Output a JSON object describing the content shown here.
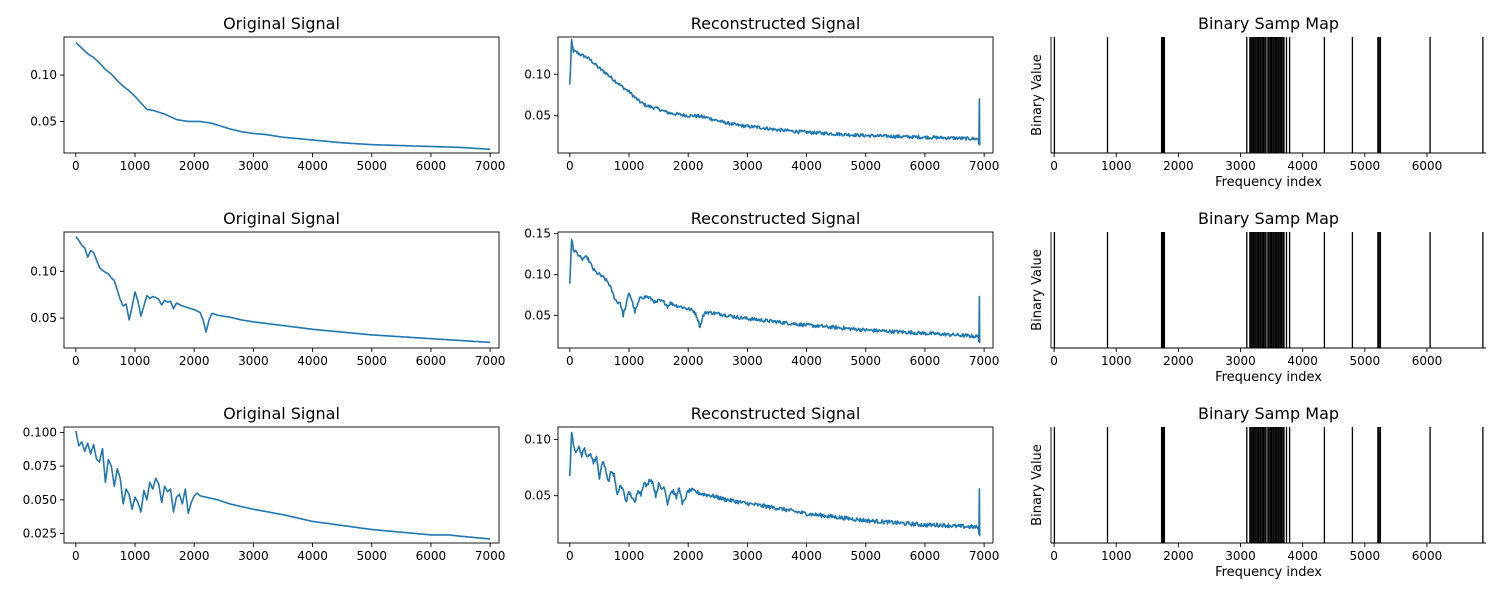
{
  "chart_data": [
    {
      "type": "line",
      "title": "Original Signal",
      "xlim": [
        -200,
        7150
      ],
      "ylim": [
        0.016,
        0.141
      ],
      "xticks": [
        0,
        1000,
        2000,
        3000,
        4000,
        5000,
        6000,
        7000
      ],
      "yticks": [
        0.05,
        0.1
      ],
      "ytick_labels": [
        "0.05",
        "0.10"
      ],
      "color": "#1f77b4",
      "grid": false,
      "x": [
        0,
        100,
        200,
        300,
        400,
        500,
        600,
        700,
        800,
        900,
        1000,
        1100,
        1200,
        1300,
        1400,
        1500,
        1600,
        1700,
        1800,
        1900,
        2000,
        2100,
        2200,
        2300,
        2400,
        2500,
        2600,
        2800,
        3000,
        3200,
        3500,
        4000,
        4500,
        5000,
        5500,
        6000,
        6500,
        7000
      ],
      "y": [
        0.135,
        0.129,
        0.123,
        0.119,
        0.113,
        0.106,
        0.101,
        0.094,
        0.088,
        0.083,
        0.077,
        0.07,
        0.063,
        0.062,
        0.06,
        0.058,
        0.055,
        0.052,
        0.051,
        0.05,
        0.05,
        0.05,
        0.049,
        0.048,
        0.046,
        0.044,
        0.042,
        0.039,
        0.037,
        0.036,
        0.033,
        0.03,
        0.027,
        0.025,
        0.024,
        0.023,
        0.022,
        0.02
      ]
    },
    {
      "type": "line",
      "title": "Reconstructed Signal",
      "xlim": [
        -200,
        7150
      ],
      "ylim": [
        0.005,
        0.145
      ],
      "xticks": [
        0,
        1000,
        2000,
        3000,
        4000,
        5000,
        6000,
        7000
      ],
      "yticks": [
        0.05,
        0.1
      ],
      "ytick_labels": [
        "0.05",
        "0.10"
      ],
      "color": "#1f77b4",
      "grid": false,
      "noise": 0.002,
      "end_spike": 0.07,
      "x": [
        0,
        30,
        60,
        100,
        200,
        300,
        400,
        500,
        600,
        700,
        800,
        900,
        1000,
        1100,
        1200,
        1300,
        1400,
        1500,
        1600,
        1700,
        1800,
        1900,
        2000,
        2100,
        2200,
        2300,
        2400,
        2500,
        2600,
        2800,
        3000,
        3200,
        3500,
        4000,
        4500,
        5000,
        5500,
        6000,
        6500,
        6900
      ],
      "y": [
        0.087,
        0.14,
        0.128,
        0.127,
        0.123,
        0.12,
        0.114,
        0.107,
        0.102,
        0.096,
        0.09,
        0.084,
        0.079,
        0.072,
        0.066,
        0.062,
        0.06,
        0.058,
        0.055,
        0.053,
        0.052,
        0.051,
        0.05,
        0.05,
        0.049,
        0.048,
        0.046,
        0.044,
        0.042,
        0.039,
        0.037,
        0.036,
        0.033,
        0.03,
        0.028,
        0.026,
        0.025,
        0.024,
        0.023,
        0.022
      ]
    },
    {
      "type": "bar",
      "title": "Binary Samp Map",
      "xlabel": "Frequency index",
      "ylabel": "Binary Value",
      "xlim": [
        -50,
        6950
      ],
      "xticks": [
        0,
        1000,
        2000,
        3000,
        4000,
        5000,
        6000
      ],
      "color": "#000000",
      "lines": [
        5,
        860,
        1730,
        1745,
        1760,
        1775,
        3100,
        3150,
        3170,
        3190,
        3210,
        3230,
        3250,
        3270,
        3290,
        3310,
        3330,
        3350,
        3370,
        3390,
        3410,
        3440,
        3460,
        3480,
        3500,
        3520,
        3540,
        3560,
        3580,
        3600,
        3620,
        3640,
        3660,
        3680,
        3700,
        3740,
        3790,
        4350,
        4800,
        5210,
        5230,
        5250,
        6050,
        6900
      ]
    },
    {
      "type": "line",
      "title": "Original Signal",
      "xlim": [
        -200,
        7150
      ],
      "ylim": [
        0.018,
        0.142
      ],
      "xticks": [
        0,
        1000,
        2000,
        3000,
        4000,
        5000,
        6000,
        7000
      ],
      "yticks": [
        0.05,
        0.1
      ],
      "ytick_labels": [
        "0.05",
        "0.10"
      ],
      "color": "#1f77b4",
      "grid": false,
      "x": [
        0,
        50,
        100,
        150,
        200,
        250,
        300,
        350,
        400,
        450,
        500,
        550,
        600,
        650,
        700,
        750,
        800,
        850,
        900,
        950,
        1000,
        1050,
        1100,
        1150,
        1200,
        1250,
        1300,
        1350,
        1400,
        1450,
        1500,
        1550,
        1600,
        1650,
        1700,
        1800,
        1900,
        2000,
        2100,
        2150,
        2200,
        2250,
        2300,
        2400,
        2600,
        2800,
        3000,
        3500,
        4000,
        4500,
        5000,
        5500,
        6000,
        6500,
        7000
      ],
      "y": [
        0.137,
        0.133,
        0.128,
        0.125,
        0.115,
        0.122,
        0.12,
        0.112,
        0.104,
        0.101,
        0.099,
        0.097,
        0.093,
        0.09,
        0.08,
        0.07,
        0.063,
        0.065,
        0.048,
        0.062,
        0.078,
        0.068,
        0.052,
        0.063,
        0.074,
        0.071,
        0.073,
        0.072,
        0.07,
        0.064,
        0.069,
        0.067,
        0.068,
        0.06,
        0.066,
        0.063,
        0.061,
        0.059,
        0.056,
        0.048,
        0.035,
        0.048,
        0.055,
        0.053,
        0.051,
        0.048,
        0.046,
        0.042,
        0.038,
        0.035,
        0.032,
        0.03,
        0.028,
        0.026,
        0.024
      ]
    },
    {
      "type": "line",
      "title": "Reconstructed Signal",
      "xlim": [
        -200,
        7150
      ],
      "ylim": [
        0.01,
        0.152
      ],
      "xticks": [
        0,
        1000,
        2000,
        3000,
        4000,
        5000,
        6000,
        7000
      ],
      "yticks": [
        0.05,
        0.1,
        0.15
      ],
      "ytick_labels": [
        "0.05",
        "0.10",
        "0.15"
      ],
      "color": "#1f77b4",
      "grid": false,
      "noise": 0.0022,
      "end_spike": 0.073,
      "x": [
        0,
        30,
        60,
        100,
        150,
        200,
        250,
        300,
        350,
        400,
        450,
        500,
        550,
        600,
        650,
        700,
        750,
        800,
        850,
        900,
        950,
        1000,
        1050,
        1100,
        1150,
        1200,
        1250,
        1300,
        1350,
        1400,
        1450,
        1500,
        1550,
        1600,
        1650,
        1700,
        1800,
        1900,
        2000,
        2100,
        2150,
        2200,
        2250,
        2300,
        2400,
        2600,
        2800,
        3000,
        3500,
        4000,
        4500,
        5000,
        5500,
        6000,
        6500,
        6900
      ],
      "y": [
        0.089,
        0.144,
        0.13,
        0.128,
        0.124,
        0.118,
        0.121,
        0.12,
        0.113,
        0.106,
        0.102,
        0.1,
        0.097,
        0.094,
        0.09,
        0.082,
        0.072,
        0.066,
        0.066,
        0.05,
        0.062,
        0.078,
        0.068,
        0.054,
        0.064,
        0.073,
        0.072,
        0.073,
        0.071,
        0.069,
        0.065,
        0.068,
        0.067,
        0.066,
        0.061,
        0.065,
        0.062,
        0.06,
        0.058,
        0.055,
        0.048,
        0.036,
        0.049,
        0.054,
        0.053,
        0.051,
        0.048,
        0.046,
        0.042,
        0.038,
        0.035,
        0.032,
        0.03,
        0.028,
        0.026,
        0.024
      ]
    },
    {
      "type": "bar",
      "title": "Binary Samp Map",
      "xlabel": "Frequency index",
      "ylabel": "Binary Value",
      "xlim": [
        -50,
        6950
      ],
      "xticks": [
        0,
        1000,
        2000,
        3000,
        4000,
        5000,
        6000
      ],
      "color": "#000000",
      "lines": [
        5,
        860,
        1730,
        1745,
        1760,
        1775,
        3100,
        3150,
        3170,
        3190,
        3210,
        3230,
        3250,
        3270,
        3290,
        3310,
        3330,
        3350,
        3370,
        3390,
        3410,
        3440,
        3460,
        3480,
        3500,
        3520,
        3540,
        3560,
        3580,
        3600,
        3620,
        3640,
        3660,
        3680,
        3700,
        3740,
        3790,
        4350,
        4800,
        5210,
        5230,
        5250,
        6050,
        6900
      ]
    },
    {
      "type": "line",
      "title": "Original Signal",
      "xlim": [
        -200,
        7150
      ],
      "ylim": [
        0.018,
        0.104
      ],
      "xticks": [
        0,
        1000,
        2000,
        3000,
        4000,
        5000,
        6000,
        7000
      ],
      "yticks": [
        0.025,
        0.05,
        0.075,
        0.1
      ],
      "ytick_labels": [
        "0.025",
        "0.050",
        "0.075",
        "0.100"
      ],
      "color": "#1f77b4",
      "grid": false,
      "x": [
        0,
        50,
        100,
        150,
        200,
        250,
        300,
        350,
        400,
        450,
        500,
        550,
        600,
        650,
        700,
        750,
        800,
        850,
        900,
        950,
        1000,
        1050,
        1100,
        1150,
        1200,
        1250,
        1300,
        1350,
        1400,
        1450,
        1500,
        1550,
        1600,
        1650,
        1700,
        1750,
        1800,
        1850,
        1900,
        1950,
        2000,
        2050,
        2100,
        2200,
        2400,
        2600,
        2800,
        3000,
        3500,
        4000,
        4500,
        5000,
        5500,
        6000,
        6300,
        6500,
        7000
      ],
      "y": [
        0.101,
        0.09,
        0.093,
        0.086,
        0.092,
        0.084,
        0.091,
        0.08,
        0.078,
        0.088,
        0.063,
        0.08,
        0.075,
        0.06,
        0.073,
        0.066,
        0.047,
        0.058,
        0.054,
        0.043,
        0.052,
        0.048,
        0.041,
        0.057,
        0.05,
        0.063,
        0.058,
        0.066,
        0.062,
        0.048,
        0.06,
        0.056,
        0.058,
        0.041,
        0.052,
        0.054,
        0.047,
        0.058,
        0.04,
        0.048,
        0.053,
        0.055,
        0.053,
        0.052,
        0.05,
        0.047,
        0.045,
        0.043,
        0.039,
        0.034,
        0.031,
        0.028,
        0.026,
        0.024,
        0.024,
        0.023,
        0.021
      ]
    },
    {
      "type": "line",
      "title": "Reconstructed Signal",
      "xlim": [
        -200,
        7150
      ],
      "ylim": [
        0.008,
        0.111
      ],
      "xticks": [
        0,
        1000,
        2000,
        3000,
        4000,
        5000,
        6000,
        7000
      ],
      "yticks": [
        0.05,
        0.1
      ],
      "ytick_labels": [
        "0.05",
        "0.10"
      ],
      "color": "#1f77b4",
      "grid": false,
      "noise": 0.0018,
      "end_spike": 0.056,
      "x": [
        0,
        30,
        60,
        100,
        150,
        200,
        250,
        300,
        350,
        400,
        450,
        500,
        550,
        600,
        650,
        700,
        750,
        800,
        850,
        900,
        950,
        1000,
        1050,
        1100,
        1150,
        1200,
        1250,
        1300,
        1350,
        1400,
        1450,
        1500,
        1550,
        1600,
        1650,
        1700,
        1750,
        1800,
        1850,
        1900,
        1950,
        2000,
        2050,
        2100,
        2200,
        2400,
        2600,
        2800,
        3000,
        3500,
        4000,
        4500,
        5000,
        5500,
        6000,
        6300,
        6500,
        6900
      ],
      "y": [
        0.068,
        0.107,
        0.094,
        0.09,
        0.094,
        0.086,
        0.092,
        0.083,
        0.088,
        0.079,
        0.085,
        0.066,
        0.08,
        0.075,
        0.062,
        0.072,
        0.068,
        0.05,
        0.059,
        0.055,
        0.045,
        0.053,
        0.049,
        0.043,
        0.056,
        0.051,
        0.062,
        0.058,
        0.065,
        0.062,
        0.05,
        0.06,
        0.056,
        0.058,
        0.043,
        0.053,
        0.054,
        0.048,
        0.058,
        0.042,
        0.048,
        0.054,
        0.055,
        0.054,
        0.052,
        0.05,
        0.047,
        0.045,
        0.043,
        0.039,
        0.034,
        0.031,
        0.028,
        0.026,
        0.024,
        0.024,
        0.023,
        0.022
      ]
    },
    {
      "type": "bar",
      "title": "Binary Samp Map",
      "xlabel": "Frequency index",
      "ylabel": "Binary Value",
      "xlim": [
        -50,
        6950
      ],
      "xticks": [
        0,
        1000,
        2000,
        3000,
        4000,
        5000,
        6000
      ],
      "color": "#000000",
      "lines": [
        5,
        860,
        1730,
        1745,
        1760,
        1775,
        3100,
        3150,
        3170,
        3190,
        3210,
        3230,
        3250,
        3270,
        3290,
        3310,
        3330,
        3350,
        3370,
        3390,
        3410,
        3440,
        3460,
        3480,
        3500,
        3520,
        3540,
        3560,
        3580,
        3600,
        3620,
        3640,
        3660,
        3680,
        3700,
        3740,
        3790,
        4350,
        4800,
        5210,
        5230,
        5250,
        6050,
        6900
      ]
    }
  ]
}
